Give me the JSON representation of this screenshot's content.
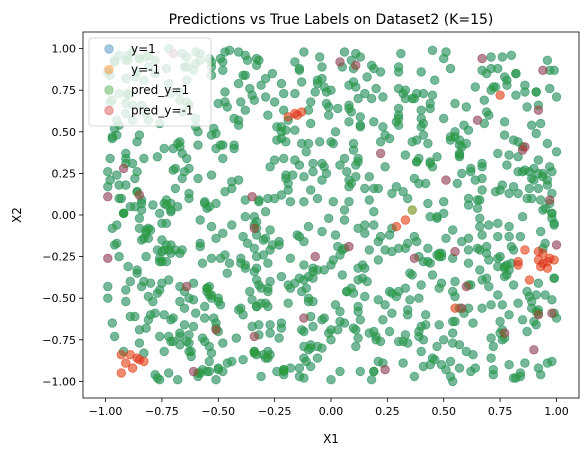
{
  "chart_data": {
    "type": "scatter",
    "title": "Predictions vs True Labels on Dataset2 (K=15)",
    "xlabel": "X1",
    "ylabel": "X2",
    "xlim": [
      -1.1,
      1.1
    ],
    "ylim": [
      -1.1,
      1.1
    ],
    "xticks": [
      "−1.00",
      "−0.75",
      "−0.50",
      "−0.25",
      "0.00",
      "0.25",
      "0.50",
      "0.75",
      "1.00"
    ],
    "yticks": [
      "−1.00",
      "−0.75",
      "−0.50",
      "−0.25",
      "0.00",
      "0.25",
      "0.50",
      "0.75",
      "1.00"
    ],
    "grid": false,
    "legend_position": "top-left",
    "series": [
      {
        "name": "y=1",
        "color": "#1f77b4",
        "alpha": 0.4,
        "points": []
      },
      {
        "name": "y=-1",
        "color": "#ff7f0e",
        "alpha": 0.4,
        "points": []
      },
      {
        "name": "pred_y=1",
        "color": "#2ca02c",
        "alpha": 0.4,
        "points": []
      },
      {
        "name": "pred_y=-1",
        "color": "#d62728",
        "alpha": 0.4,
        "points": []
      }
    ]
  }
}
